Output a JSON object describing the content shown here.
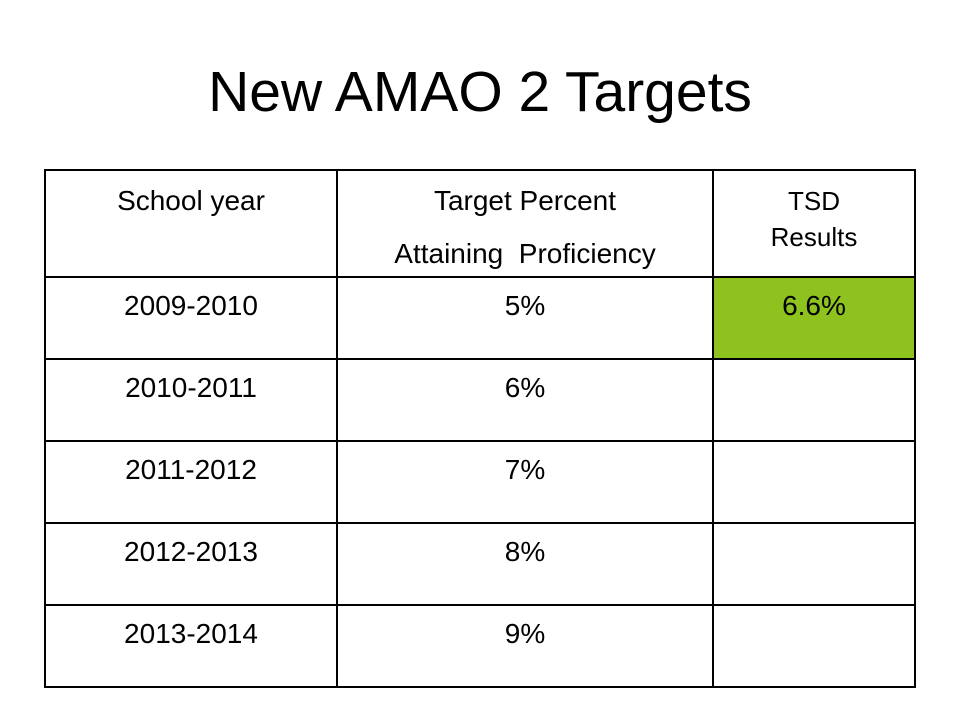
{
  "slide": {
    "title": "New AMAO 2 Targets"
  },
  "table": {
    "headers": {
      "school_year": "School year",
      "target_line1": "Target Percent",
      "target_line2": "Attaining  Proficiency",
      "tsd_line1": "TSD",
      "tsd_line2": "Results"
    },
    "rows": [
      {
        "year": "2009-2010",
        "target": "5%",
        "result": "6.6%"
      },
      {
        "year": "2010-2011",
        "target": "6%",
        "result": ""
      },
      {
        "year": "2011-2012",
        "target": "7%",
        "result": ""
      },
      {
        "year": "2012-2013",
        "target": "8%",
        "result": ""
      },
      {
        "year": "2013-2014",
        "target": "9%",
        "result": ""
      }
    ],
    "highlight_color": "#8ec21f"
  }
}
